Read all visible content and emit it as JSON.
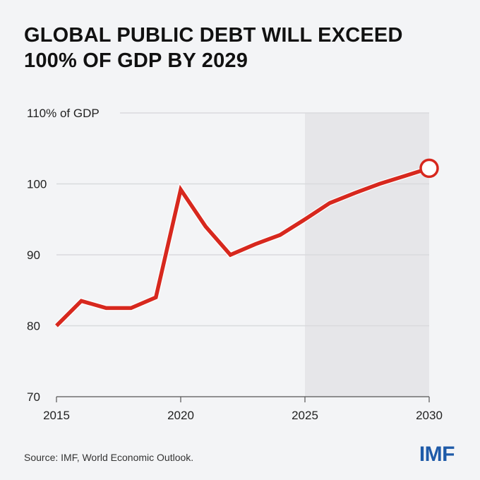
{
  "title_line1": "GLOBAL PUBLIC DEBT WILL EXCEED",
  "title_line2": "100% OF GDP BY 2029",
  "source": "Source: IMF, World Economic Outlook.",
  "logo": "IMF",
  "chart_data": {
    "type": "line",
    "title": "GLOBAL PUBLIC DEBT WILL EXCEED 100% OF GDP BY 2029",
    "xlabel": "",
    "ylabel": "",
    "xlim": [
      2015,
      2030
    ],
    "ylim": [
      70,
      110
    ],
    "x_ticks": [
      2015,
      2020,
      2025,
      2030
    ],
    "y_ticks": [
      {
        "value": 70,
        "label": "70"
      },
      {
        "value": 80,
        "label": "80"
      },
      {
        "value": 90,
        "label": "90"
      },
      {
        "value": 100,
        "label": "100"
      },
      {
        "value": 110,
        "label": "110% of GDP"
      }
    ],
    "grid": "horizontal",
    "projection_shaded_range": [
      2025,
      2030
    ],
    "colors": {
      "line": "#d7281e",
      "shade": "#e6e6e9",
      "grid": "#d9dadd",
      "logo": "#1e5aa8"
    },
    "series": [
      {
        "x": [
          2015,
          2016,
          2017,
          2018,
          2019,
          2020,
          2021,
          2022,
          2023,
          2024,
          2025,
          2026,
          2027,
          2028,
          2029,
          2030
        ],
        "values": [
          80,
          83.5,
          82.5,
          82.5,
          84,
          99.2,
          94,
          90,
          91.5,
          92.8,
          95,
          97.3,
          98.7,
          100,
          101.1,
          102.2
        ]
      }
    ],
    "endpoint_marker": "open-circle"
  }
}
